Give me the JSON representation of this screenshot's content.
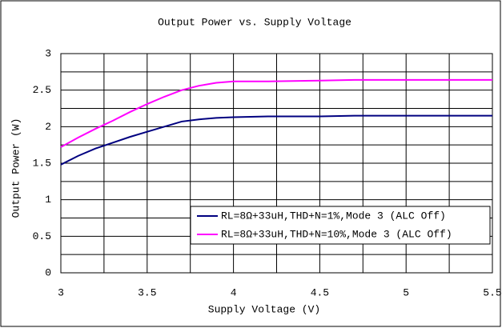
{
  "chart_data": {
    "type": "line",
    "title": "Output Power vs. Supply Voltage",
    "xlabel": "Supply Voltage (V)",
    "ylabel": "Output Power (W)",
    "x": [
      3,
      3.1,
      3.2,
      3.3,
      3.4,
      3.5,
      3.6,
      3.7,
      3.8,
      3.9,
      4.0,
      4.2,
      4.5,
      4.7,
      5.0,
      5.5
    ],
    "series": [
      {
        "name": "RL=8Ω+33uH,THD+N=1%,Mode 3 (ALC Off)",
        "color": "#000080",
        "values": [
          1.48,
          1.6,
          1.7,
          1.78,
          1.86,
          1.93,
          2.0,
          2.07,
          2.1,
          2.12,
          2.13,
          2.14,
          2.14,
          2.15,
          2.15,
          2.15
        ]
      },
      {
        "name": "RL=8Ω+33uH,THD+N=10%,Mode 3 (ALC Off)",
        "color": "#ff00ff",
        "values": [
          1.72,
          1.85,
          1.97,
          2.08,
          2.2,
          2.31,
          2.41,
          2.5,
          2.56,
          2.6,
          2.62,
          2.62,
          2.63,
          2.64,
          2.64,
          2.64
        ]
      }
    ],
    "xlim": [
      3,
      5.5
    ],
    "xticks": [
      3,
      3.5,
      4,
      4.5,
      5,
      5.5
    ],
    "xticks_minor": [
      3.25,
      3.75,
      4.25,
      4.75,
      5.25
    ],
    "ylim": [
      0,
      3
    ],
    "yticks": [
      0,
      0.5,
      1,
      1.5,
      2,
      2.5,
      3
    ],
    "yticks_minor": [
      0.25,
      0.75,
      1.25,
      1.75,
      2.25,
      2.75
    ],
    "grid": true,
    "legend": "lower right"
  }
}
